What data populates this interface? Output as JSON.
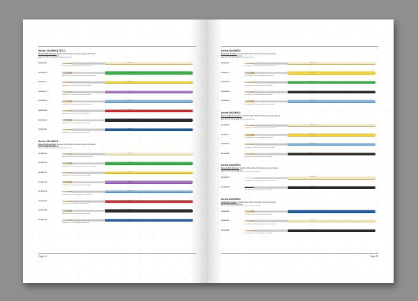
{
  "left_page": {
    "page_number": "Page 31",
    "sections": [
      {
        "title": "Series 3023H001 (ETL)",
        "desc_label": "Round bristle brushes:",
        "desc": "Excellent white bristle oil brushes long round handle.",
        "desc2": "Ferrule brass with lacquered.",
        "sizes": "Size: #0,#1,#2,#3,#4,#5,#6,#7,#8,#9,#10,#11,#12",
        "brushes": [
          {
            "code": "3023H001NY",
            "color": "#f5e7b7",
            "bristle": "natural",
            "caption": "white bristle oil, Ferrule long lacquer round handle"
          },
          {
            "code": "3023H001GN",
            "color": "#3bae45",
            "bristle": "natural",
            "caption": "white bristle oil, Ferrule long green lacquered round handle"
          },
          {
            "code": "3023H001YL",
            "color": "#f3d33a",
            "bristle": "natural",
            "caption": "white bristle oil, Ferrule long yellow round handle"
          },
          {
            "code": "3023H001PP",
            "color": "#a873c6",
            "bristle": "natural",
            "caption": "white bristle oil, Ferrule long purple round handle"
          },
          {
            "code": "3023H001LB",
            "color": "#7fb3df",
            "bristle": "natural",
            "caption": "white bristle oil, Ferrule long light blue round handle"
          },
          {
            "code": "3023H001RD",
            "color": "#d9302b",
            "bristle": "natural",
            "caption": "white bristle oil, Ferrule long red round handle"
          },
          {
            "code": "3023H001BK",
            "color": "#2b2b2b",
            "bristle": "natural",
            "caption": "white bristle oil, Ferrule long black round handle"
          },
          {
            "code": "3023H001BL",
            "color": "#1f5fa8",
            "bristle": "natural",
            "caption": "white bristle oil, Ferrule long blue round handle"
          }
        ]
      },
      {
        "title": "Series 3013H001",
        "desc_label": "Round bristle brushes:",
        "desc": "Excellent white bristle oil brushes long round handle.",
        "desc2": "Ferrule brass with lacquered.",
        "sizes": "Size: #0,#1,#2,#3,#4,#5,#6,#7,#8,#9,#10,#11,#12",
        "brushes": [
          {
            "code": "3013H001NY",
            "color": "#f5e7b7",
            "bristle": "natural",
            "caption": "white bristle oil, Ferrule long lacquered round handle"
          },
          {
            "code": "3013H001GN",
            "color": "#3bae45",
            "bristle": "natural",
            "caption": "white bristle oil, Ferrule long green lacquered round handle"
          },
          {
            "code": "3013H001YL",
            "color": "#f3d33a",
            "bristle": "natural",
            "caption": "white bristle oil, Ferrule long yellow round handle"
          },
          {
            "code": "3013H001PP",
            "color": "#a873c6",
            "bristle": "natural",
            "caption": "white bristle oil, Ferrule long purple round handle"
          },
          {
            "code": "3013H001LB",
            "color": "#7fb3df",
            "bristle": "natural",
            "caption": "white bristle oil, Ferrule long light blue round handle"
          },
          {
            "code": "3013H001RD",
            "color": "#d9302b",
            "bristle": "natural",
            "caption": "white bristle oil, Ferrule long red round handle"
          },
          {
            "code": "3013H001BK",
            "color": "#2b2b2b",
            "bristle": "natural",
            "caption": "white bristle oil, Ferrule long black round handle"
          },
          {
            "code": "3013H001BL",
            "color": "#1f5fa8",
            "bristle": "natural",
            "caption": "white bristle oil, Ferrule long blue round handle"
          }
        ]
      }
    ]
  },
  "right_page": {
    "page_number": "Page 32",
    "sections": [
      {
        "title": "Series 3023H002",
        "desc_label": "Flat bristle brushes:",
        "desc": "Excellent white bristle oil brushes long round handle.",
        "desc2": "Ferrule brass with lacquered.",
        "sizes": "Size: #0,#1,#2,#3,#4,#5,#6,#7,#8,#9,#10,#11,#12",
        "brushes": [
          {
            "code": "3023H002NY",
            "color": "#f5e7b7",
            "bristle": "natural",
            "caption": "white bristle oil, Ferrule long lacquered round handle"
          },
          {
            "code": "3023H002YL",
            "color": "#f3d33a",
            "bristle": "natural",
            "caption": "white bristle oil, Ferrule long yellow round handle"
          },
          {
            "code": "3023H002GN",
            "color": "#3bae45",
            "bristle": "natural",
            "caption": "white bristle oil, Ferrule long green round handle"
          },
          {
            "code": "3023H002BK",
            "color": "#2b2b2b",
            "bristle": "natural",
            "caption": "white bristle oil, Ferrule long black round handle"
          },
          {
            "code": "3023H002LB",
            "color": "#7fb3df",
            "bristle": "natural",
            "caption": "white bristle oil, Ferrule long light blue round handle"
          }
        ]
      },
      {
        "title": "Series 3013H002",
        "desc_label": "Round synthetic brushes:",
        "desc": "Excellent white bristle oil brushes long round handle.",
        "desc2": "Ferrule brass with lacquered.",
        "sizes": "Size: #0,#1,#2,#3,#4,#5,#6,#7,#8,#9,#10,#11,#12",
        "brushes": [
          {
            "code": "3013H002NY",
            "color": "#f5e7b7",
            "bristle": "natural",
            "caption": "white bristle oil, Ferrule long lacquered round handle"
          },
          {
            "code": "3013H002YL",
            "color": "#f3d33a",
            "bristle": "natural",
            "caption": "white bristle oil, Ferrule long yellow round handle"
          },
          {
            "code": "3013H002LB",
            "color": "#7fb3df",
            "bristle": "natural",
            "caption": "white bristle oil, Ferrule long light blue round handle"
          },
          {
            "code": "3013H002BK",
            "color": "#2b2b2b",
            "bristle": "natural",
            "caption": "white bristle oil, Ferrule long black round handle"
          }
        ]
      },
      {
        "title": "Series 3013H001",
        "desc_label": "Flat synthetic brushes:",
        "desc": "Excellent white bristle oil brushes long round handle.",
        "desc2": "Ferrule brass with lacquered.",
        "sizes": "Size: #0,#1,#2,#3,#4,#5,#6,#7,#8,#9,#10,#11,#12,#14,#16",
        "brushes": [
          {
            "code": "3013H001NY",
            "color": "#f5e7b7",
            "bristle": "white",
            "caption": "white bristle oil, Ferrule long lacquered round handle"
          },
          {
            "code": "3013H001BK",
            "color": "#2b2b2b",
            "bristle": "dark",
            "caption": "white bristle oil, Ferrule long black round handle"
          }
        ]
      },
      {
        "title": "Series 3023H003",
        "desc_label": "Fan bristle brushes:",
        "desc": "Excellent white bristle oil brushes long round handle.",
        "desc2": "Ferrule brass with lacquered.",
        "sizes": "Size: #0,#1,#2,#3,#4,#5,#6,#7,#8,#9,#10,#11,#12,#14,#16",
        "brushes": [
          {
            "code": "3023H003BL",
            "color": "#1f5fa8",
            "bristle": "natural",
            "caption": "white bristle oil, Ferrule long blue round handle"
          },
          {
            "code": "3023H003NY",
            "color": "#f5e7b7",
            "bristle": "natural",
            "caption": "white bristle oil, Ferrule long lacquered round handle"
          },
          {
            "code": "3023H003BK",
            "color": "#2b2b2b",
            "bristle": "natural",
            "caption": "white bristle oil, Ferrule long black round handle"
          }
        ]
      }
    ]
  },
  "handle_print": "Mont. rate",
  "colors": {
    "backdrop": "#8f8f8f",
    "page": "#ffffff",
    "rule": "#9a9a9a"
  }
}
